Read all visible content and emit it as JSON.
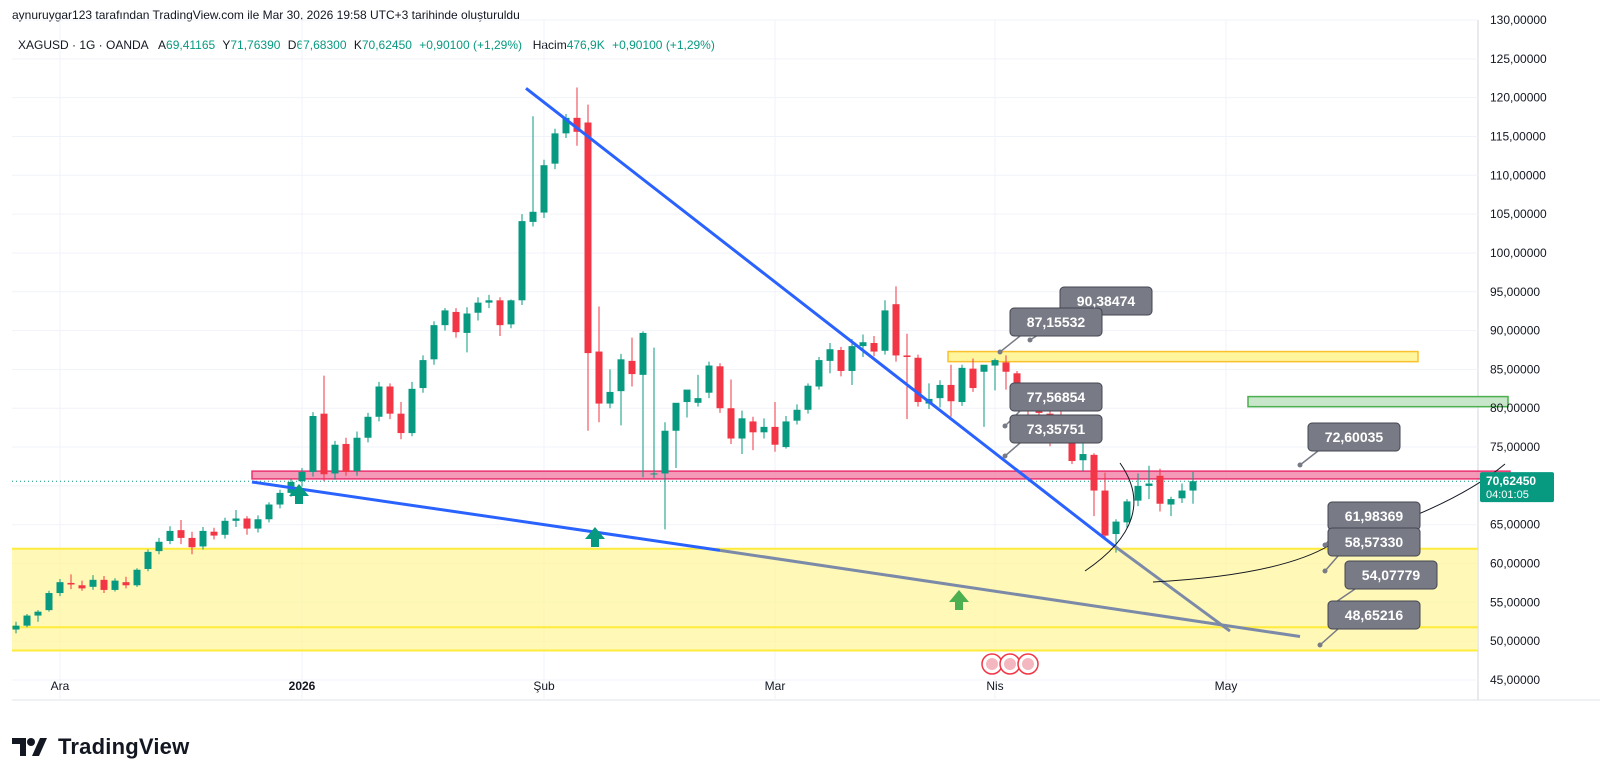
{
  "header": {
    "created_by": "aynuruygar123 tarafından TradingView.com ile Mar 30, 2026 19:58 UTC+3 tarihinde oluşturuldu"
  },
  "legend": {
    "symbol": "XAGUSD · 1G · OANDA",
    "open_label": "A",
    "open": "69,41165",
    "high_label": "Y",
    "high": "71,76390",
    "low_label": "D",
    "low": "67,68300",
    "close_label": "K",
    "close": "70,62450",
    "change": "+0,90100 (+1,29%)",
    "volume_label": "Hacim",
    "volume": "476,9K",
    "volume_change": "+0,90100 (+1,29%)"
  },
  "brand": {
    "name": "TradingView"
  },
  "colors": {
    "up": "#089981",
    "down": "#f23645",
    "trend_blue": "#2962ff",
    "trend_grey": "#7b8aa8",
    "zone_yellow": "#fff59d",
    "zone_green": "#c8e6c9",
    "zone_pink": "#f48fb1",
    "label_bg": "#787b86",
    "price_tag": "#089981"
  },
  "chart_data": {
    "type": "candlestick",
    "symbol": "XAGUSD",
    "interval": "1G",
    "ylim": [
      45,
      130
    ],
    "y_ticks": [
      "130,00000",
      "125,00000",
      "120,00000",
      "115,00000",
      "110,00000",
      "105,00000",
      "100,00000",
      "95,00000",
      "90,00000",
      "85,00000",
      "80,00000",
      "75,00000",
      "70,00000",
      "65,00000",
      "60,00000",
      "55,00000",
      "50,00000",
      "45,00000"
    ],
    "x_ticks": [
      "Ara",
      "2026",
      "Şub",
      "Mar",
      "Nis",
      "May"
    ],
    "current_price": "70,62450",
    "countdown": "04:01:05",
    "candles": [
      [
        51.5,
        52.5,
        51.0,
        52.0
      ],
      [
        52.0,
        53.5,
        51.8,
        53.3
      ],
      [
        53.3,
        54.0,
        52.5,
        53.8
      ],
      [
        54.0,
        56.5,
        53.8,
        56.2
      ],
      [
        56.2,
        58.0,
        55.8,
        57.6
      ],
      [
        57.5,
        58.6,
        56.7,
        57.3
      ],
      [
        57.2,
        57.8,
        56.5,
        56.8
      ],
      [
        57.0,
        58.5,
        56.6,
        57.9
      ],
      [
        57.9,
        58.4,
        56.2,
        56.6
      ],
      [
        56.6,
        58.1,
        56.4,
        57.8
      ],
      [
        57.6,
        58.3,
        56.8,
        57.2
      ],
      [
        57.2,
        59.4,
        57.0,
        59.2
      ],
      [
        59.3,
        61.8,
        59.0,
        61.5
      ],
      [
        61.6,
        63.3,
        61.2,
        62.8
      ],
      [
        62.9,
        64.8,
        62.5,
        64.2
      ],
      [
        64.3,
        65.6,
        62.5,
        63.3
      ],
      [
        63.3,
        64.1,
        61.2,
        62.1
      ],
      [
        62.2,
        64.7,
        61.8,
        64.2
      ],
      [
        64.1,
        64.6,
        63.1,
        63.6
      ],
      [
        63.7,
        65.9,
        63.2,
        65.5
      ],
      [
        65.5,
        66.9,
        64.7,
        65.8
      ],
      [
        65.8,
        66.1,
        63.7,
        64.5
      ],
      [
        64.5,
        66.2,
        64.0,
        65.7
      ],
      [
        65.7,
        67.9,
        65.3,
        67.6
      ],
      [
        67.6,
        69.5,
        67.1,
        69.1
      ],
      [
        69.1,
        70.9,
        68.6,
        70.5
      ],
      [
        70.6,
        72.3,
        69.9,
        71.8
      ],
      [
        71.8,
        79.5,
        71.2,
        79.0
      ],
      [
        79.3,
        84.2,
        70.6,
        71.5
      ],
      [
        71.6,
        75.8,
        70.8,
        75.3
      ],
      [
        75.4,
        76.2,
        71.3,
        71.8
      ],
      [
        71.9,
        77.0,
        71.3,
        76.2
      ],
      [
        76.2,
        79.4,
        75.6,
        78.9
      ],
      [
        78.9,
        83.4,
        78.3,
        82.8
      ],
      [
        82.8,
        83.2,
        78.6,
        79.3
      ],
      [
        79.3,
        80.8,
        76.0,
        76.8
      ],
      [
        76.8,
        83.4,
        76.4,
        82.5
      ],
      [
        82.6,
        86.8,
        82.0,
        86.2
      ],
      [
        86.3,
        91.2,
        85.6,
        90.7
      ],
      [
        90.7,
        92.9,
        90.0,
        92.6
      ],
      [
        92.4,
        92.9,
        89.1,
        89.8
      ],
      [
        89.7,
        93.0,
        87.2,
        92.2
      ],
      [
        92.3,
        94.3,
        91.3,
        93.6
      ],
      [
        93.6,
        94.6,
        92.9,
        93.9
      ],
      [
        93.9,
        94.3,
        89.3,
        90.7
      ],
      [
        90.8,
        94.0,
        90.3,
        93.9
      ],
      [
        93.9,
        105.0,
        93.3,
        104.1
      ],
      [
        104.0,
        117.6,
        103.4,
        105.3
      ],
      [
        105.2,
        112.0,
        104.5,
        111.3
      ],
      [
        111.5,
        116.0,
        110.8,
        115.4
      ],
      [
        115.4,
        117.9,
        114.8,
        117.4
      ],
      [
        117.4,
        121.3,
        113.8,
        115.6
      ],
      [
        116.8,
        119.1,
        77.1,
        87.1
      ],
      [
        87.3,
        93.1,
        78.2,
        80.6
      ],
      [
        80.6,
        85.0,
        80.0,
        82.1
      ],
      [
        82.2,
        87.0,
        77.8,
        86.3
      ],
      [
        86.1,
        89.1,
        82.8,
        84.4
      ],
      [
        84.3,
        89.9,
        71.1,
        89.7
      ],
      [
        71.5,
        87.8,
        71.0,
        71.6
      ],
      [
        71.6,
        78.2,
        64.4,
        77.1
      ],
      [
        77.1,
        80.6,
        72.3,
        80.7
      ],
      [
        80.8,
        82.3,
        78.8,
        82.4
      ],
      [
        80.7,
        84.3,
        80.2,
        81.3
      ],
      [
        82.0,
        86.0,
        81.3,
        85.5
      ],
      [
        85.4,
        85.8,
        79.4,
        80.0
      ],
      [
        80.0,
        83.7,
        75.4,
        76.1
      ],
      [
        76.1,
        79.7,
        74.1,
        78.7
      ],
      [
        78.3,
        78.9,
        74.6,
        76.9
      ],
      [
        76.9,
        78.7,
        76.1,
        77.6
      ],
      [
        77.6,
        80.8,
        74.4,
        75.3
      ],
      [
        75.0,
        79.0,
        74.8,
        78.3
      ],
      [
        78.4,
        80.5,
        77.9,
        79.8
      ],
      [
        79.8,
        83.2,
        79.3,
        82.9
      ],
      [
        82.8,
        86.6,
        82.4,
        86.2
      ],
      [
        86.1,
        88.4,
        84.5,
        87.6
      ],
      [
        87.5,
        87.9,
        84.1,
        84.8
      ],
      [
        84.8,
        88.9,
        83.0,
        88.0
      ],
      [
        88.0,
        89.5,
        86.6,
        88.5
      ],
      [
        88.4,
        89.3,
        86.7,
        87.3
      ],
      [
        87.4,
        93.9,
        86.9,
        92.6
      ],
      [
        93.4,
        95.7,
        86.0,
        86.8
      ],
      [
        86.8,
        89.6,
        78.6,
        86.6
      ],
      [
        86.5,
        86.9,
        80.2,
        80.8
      ],
      [
        80.6,
        83.2,
        79.9,
        81.2
      ],
      [
        81.3,
        83.6,
        80.1,
        83.0
      ],
      [
        83.0,
        85.6,
        78.9,
        80.9
      ],
      [
        80.8,
        85.6,
        80.3,
        85.2
      ],
      [
        85.1,
        86.4,
        82.1,
        82.6
      ],
      [
        84.7,
        85.2,
        77.6,
        85.6
      ],
      [
        85.5,
        86.4,
        82.3,
        86.2
      ],
      [
        85.9,
        86.8,
        82.4,
        84.7
      ],
      [
        84.5,
        84.8,
        81.8,
        82.1
      ],
      [
        82.1,
        83.2,
        78.9,
        79.6
      ],
      [
        79.6,
        81.1,
        75.5,
        79.4
      ],
      [
        79.3,
        80.3,
        75.1,
        78.9
      ],
      [
        78.5,
        82.6,
        77.4,
        76.9
      ],
      [
        76.5,
        78.0,
        72.8,
        73.2
      ],
      [
        73.3,
        75.6,
        71.9,
        74.1
      ],
      [
        74.0,
        74.2,
        66.1,
        69.4
      ],
      [
        69.4,
        71.7,
        63.3,
        63.6
      ],
      [
        63.8,
        65.7,
        61.4,
        65.4
      ],
      [
        65.3,
        68.3,
        64.6,
        68.0
      ],
      [
        68.1,
        71.6,
        67.4,
        70.0
      ],
      [
        70.0,
        72.6,
        68.3,
        70.3
      ],
      [
        71.3,
        72.2,
        66.7,
        67.7
      ],
      [
        67.6,
        68.6,
        66.1,
        68.3
      ],
      [
        68.4,
        70.3,
        67.8,
        69.4
      ],
      [
        69.4,
        71.8,
        67.7,
        70.6
      ]
    ],
    "annotations": {
      "resistance_zone": [
        70.9,
        71.9
      ],
      "support_zone_outer": [
        48.8,
        61.9
      ],
      "support_zone_inner": [
        51.8,
        61.9
      ],
      "yellow_target_zone": [
        86.0,
        87.3
      ],
      "green_target_zone": [
        80.2,
        81.5
      ],
      "price_labels": [
        "90,38474",
        "87,15532",
        "77,56854",
        "73,35751",
        "72,60035",
        "61,98369",
        "58,57330",
        "54,07779",
        "48,65216"
      ]
    }
  }
}
